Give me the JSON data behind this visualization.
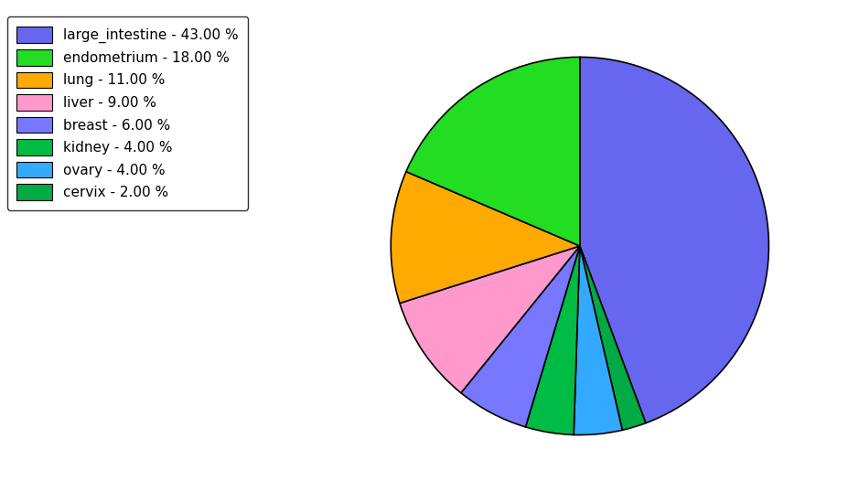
{
  "labels": [
    "large_intestine",
    "cervix",
    "ovary",
    "kidney",
    "breast",
    "liver",
    "lung",
    "endometrium"
  ],
  "values": [
    43,
    2,
    4,
    4,
    6,
    9,
    11,
    18
  ],
  "colors": [
    "#6666ee",
    "#00aa44",
    "#33aaff",
    "#00bb44",
    "#7777ff",
    "#ff99cc",
    "#ffaa00",
    "#22dd22"
  ],
  "legend_labels": [
    "large_intestine - 43.00 %",
    "endometrium - 18.00 %",
    "lung - 11.00 %",
    "liver - 9.00 %",
    "breast - 6.00 %",
    "kidney - 4.00 %",
    "ovary - 4.00 %",
    "cervix - 2.00 %"
  ],
  "legend_colors": [
    "#6666ee",
    "#22dd22",
    "#ffaa00",
    "#ff99cc",
    "#7777ff",
    "#00bb44",
    "#33aaff",
    "#00aa44"
  ],
  "startangle": 90,
  "figsize": [
    9.39,
    5.38
  ],
  "dpi": 100
}
